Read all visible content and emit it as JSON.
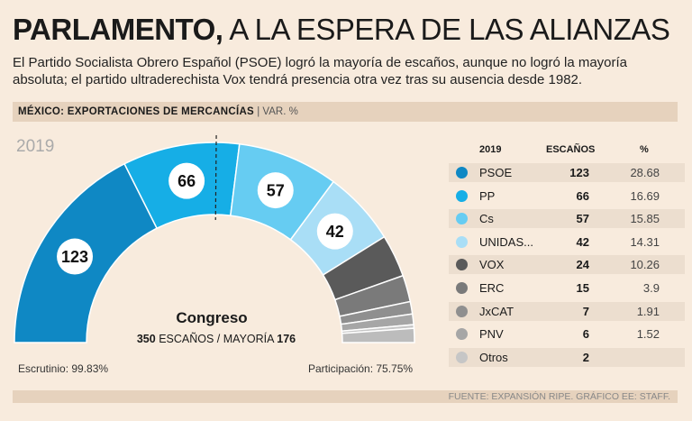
{
  "header": {
    "title_bold": "PARLAMENTO,",
    "title_rest": "A LA ESPERA DE LAS ALIANZAS",
    "subtitle": "El Partido Socialista Obrero Español (PSOE) logró la mayoría de escaños, aunque no logró la mayoría absoluta; el partido ultraderechista Vox tendrá presencia otra vez tras su ausencia desde 1982.",
    "band_label": "MÉXICO: EXPORTACIONES DE MERCANCÍAS",
    "band_sep": " | ",
    "band_sub": "VAR. %"
  },
  "gauge": {
    "year": "2019",
    "chamber": "Congreso",
    "seats_total": "350",
    "seats_word": "ESCAÑOS / MAYORÍA",
    "majority": "176",
    "scrutiny": "Escrutinio: 99.83%",
    "participation": "Participación: 75.75%"
  },
  "table_headers": {
    "year": "2019",
    "seats": "ESCAÑOS",
    "pct": "%"
  },
  "footer": {
    "source": "FUENTE: EXPANSIÓN RIPE. GRÁFICO EE: STAFF."
  },
  "chart_data": {
    "type": "pie",
    "subtype": "half-donut",
    "total": 350,
    "majority": 176,
    "series": [
      {
        "name": "PSOE",
        "seats": 123,
        "pct": "28.68",
        "color": "#0f88c4"
      },
      {
        "name": "PP",
        "seats": 66,
        "pct": "16.69",
        "color": "#16aee6"
      },
      {
        "name": "Cs",
        "seats": 57,
        "pct": "15.85",
        "color": "#66ccf2"
      },
      {
        "name": "UNIDAS...",
        "seats": 42,
        "pct": "14.31",
        "color": "#a9def6"
      },
      {
        "name": "VOX",
        "seats": 24,
        "pct": "10.26",
        "color": "#5a5a5a"
      },
      {
        "name": "ERC",
        "seats": 15,
        "pct": "3.9",
        "color": "#7a7a7a"
      },
      {
        "name": "JxCAT",
        "seats": 7,
        "pct": "1.91",
        "color": "#8f8f8f"
      },
      {
        "name": "PNV",
        "seats": 6,
        "pct": "1.52",
        "color": "#a6a6a6"
      },
      {
        "name": "Otros",
        "seats": 2,
        "pct": "",
        "color": "#c6c6c6"
      },
      {
        "name": "",
        "seats": 8,
        "pct": "",
        "color": "#bcbcbc"
      }
    ],
    "labeled": [
      "PSOE",
      "PP",
      "Cs",
      "UNIDAS..."
    ]
  }
}
